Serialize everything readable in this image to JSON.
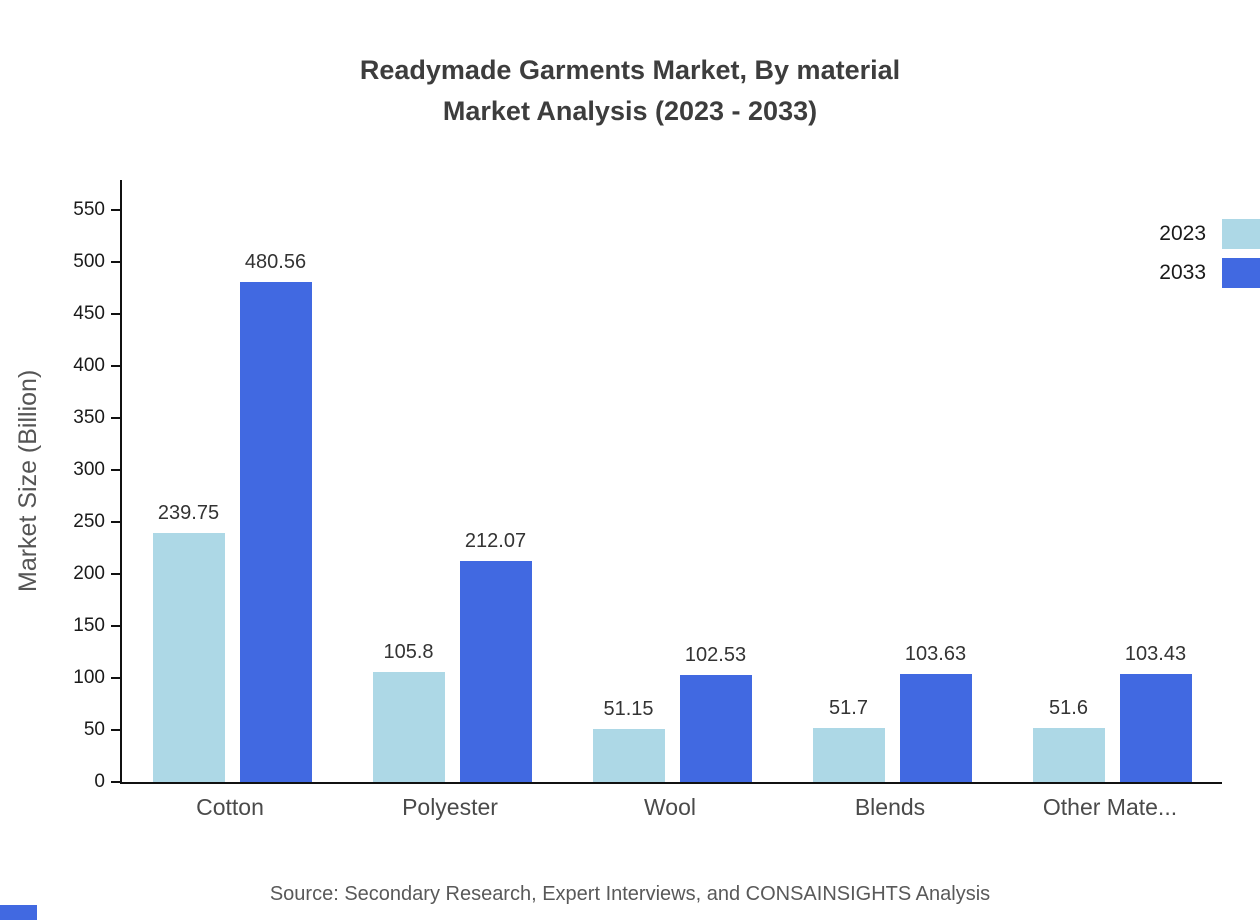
{
  "chart_data": {
    "type": "bar",
    "title": "Readymade Garments Market, By material",
    "subtitle": "Market Analysis (2023 - 2033)",
    "ylabel": "Market Size (Billion)",
    "xlabel": "",
    "categories": [
      "Cotton",
      "Polyester",
      "Wool",
      "Blends",
      "Other Mate..."
    ],
    "series": [
      {
        "name": "2023",
        "color": "#ADD8E6",
        "values": [
          239.75,
          105.8,
          51.15,
          51.7,
          51.6
        ]
      },
      {
        "name": "2033",
        "color": "#4169E1",
        "values": [
          480.56,
          212.07,
          102.53,
          103.63,
          103.43
        ]
      }
    ],
    "ylim": [
      0,
      550
    ],
    "yticks": [
      0,
      50,
      100,
      150,
      200,
      250,
      300,
      350,
      400,
      450,
      500,
      550
    ],
    "grid": false,
    "legend_position": "top-right",
    "source": "Source: Secondary Research, Expert Interviews, and CONSAINSIGHTS Analysis"
  }
}
